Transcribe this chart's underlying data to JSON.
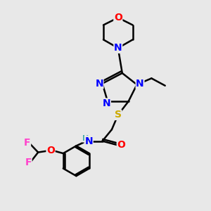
{
  "background_color": "#e8e8e8",
  "atom_colors": {
    "N": "#0000ff",
    "O": "#ff0000",
    "S": "#ccaa00",
    "F": "#ff44cc",
    "C": "#000000",
    "H": "#44aaaa"
  },
  "bond_color": "#000000",
  "bond_width": 1.8,
  "figsize": [
    3.0,
    3.0
  ],
  "dpi": 100
}
